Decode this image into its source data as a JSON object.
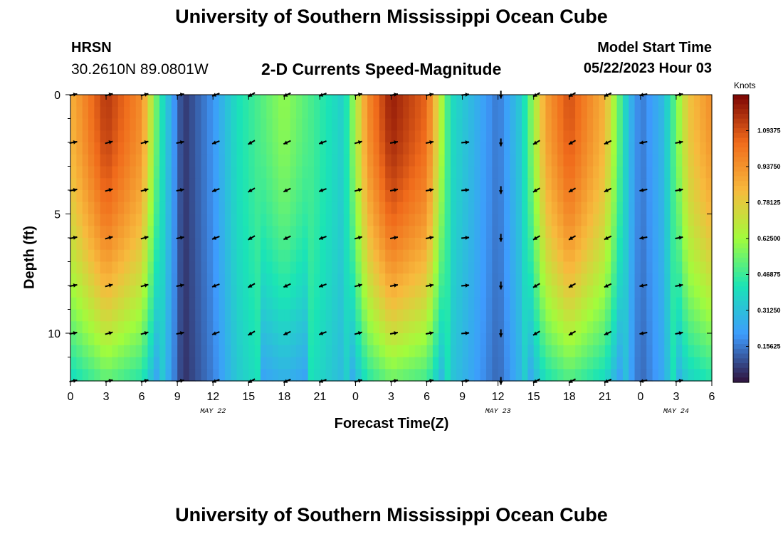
{
  "header": {
    "title": "University of Southern Mississippi Ocean Cube",
    "station": "HRSN",
    "coordinates": "30.2610N  89.0801W",
    "subtitle": "2-D Currents Speed-Magnitude",
    "model_start_label": "Model Start Time",
    "model_start_value": "05/22/2023 Hour 03"
  },
  "footer": {
    "title_repeat": "University of Southern Mississippi Ocean Cube"
  },
  "colors": {
    "low": "#30123b",
    "blue": "#3e9bfe",
    "cyan": "#1ae4b6",
    "green": "#a2fc3c",
    "yellow": "#f7ba3d",
    "orange": "#f06b1b",
    "high": "#7a0403"
  },
  "chart_data": {
    "type": "heatmap",
    "title": "2-D Currents Speed-Magnitude",
    "xlabel": "Forecast Time(Z)",
    "ylabel": "Depth (ft)",
    "x_tick_labels": [
      "0",
      "3",
      "6",
      "9",
      "12",
      "15",
      "18",
      "21",
      "0",
      "3",
      "6",
      "9",
      "12",
      "15",
      "18",
      "21",
      "0",
      "3",
      "6"
    ],
    "x_range_hours": [
      0,
      54
    ],
    "date_labels": [
      {
        "label": "MAY 22",
        "hour": 12
      },
      {
        "label": "MAY 23",
        "hour": 36
      },
      {
        "label": "MAY 24",
        "hour": 51
      }
    ],
    "y_tick_labels": [
      "0",
      "5",
      "10"
    ],
    "y_tick_values": [
      0,
      5,
      10
    ],
    "y_range_ft": [
      0,
      12
    ],
    "colorbar": {
      "unit": "Knots",
      "range": [
        0.0,
        1.25
      ],
      "tick_labels": [
        "1.09375",
        "0.93750",
        "0.78125",
        "0.62500",
        "0.46875",
        "0.31250",
        "0.15625"
      ],
      "tick_values": [
        1.09375,
        0.9375,
        0.78125,
        0.625,
        0.46875,
        0.3125,
        0.15625
      ]
    },
    "surface_speed_by_hour": [
      {
        "hour": 0,
        "value": 0.85
      },
      {
        "hour": 3,
        "value": 1.15
      },
      {
        "hour": 6,
        "value": 0.95
      },
      {
        "hour": 7.5,
        "value": 0.45
      },
      {
        "hour": 9.5,
        "value": 0.05
      },
      {
        "hour": 12,
        "value": 0.2
      },
      {
        "hour": 14,
        "value": 0.4
      },
      {
        "hour": 18,
        "value": 0.6
      },
      {
        "hour": 21,
        "value": 0.45
      },
      {
        "hour": 23,
        "value": 0.35
      },
      {
        "hour": 25,
        "value": 0.95
      },
      {
        "hour": 27,
        "value": 1.2
      },
      {
        "hour": 30,
        "value": 1.05
      },
      {
        "hour": 32,
        "value": 0.4
      },
      {
        "hour": 36,
        "value": 0.15
      },
      {
        "hour": 38,
        "value": 0.35
      },
      {
        "hour": 40,
        "value": 0.9
      },
      {
        "hour": 42,
        "value": 1.1
      },
      {
        "hour": 45,
        "value": 0.85
      },
      {
        "hour": 47,
        "value": 0.3
      },
      {
        "hour": 48,
        "value": 0.15
      },
      {
        "hour": 50,
        "value": 0.3
      },
      {
        "hour": 52,
        "value": 0.8
      },
      {
        "hour": 54,
        "value": 0.95
      }
    ],
    "depth_decay": 0.55,
    "arrow_depths_ft": [
      0,
      2,
      4,
      6,
      8,
      10,
      12
    ],
    "arrow_hours": [
      0,
      3,
      6,
      9,
      12,
      15,
      18,
      21,
      24,
      27,
      30,
      33,
      36,
      39,
      42,
      45,
      48,
      51
    ],
    "arrow_directions_deg": [
      10,
      15,
      15,
      10,
      200,
      210,
      205,
      200,
      15,
      10,
      10,
      5,
      270,
      210,
      210,
      205,
      190,
      10
    ]
  }
}
